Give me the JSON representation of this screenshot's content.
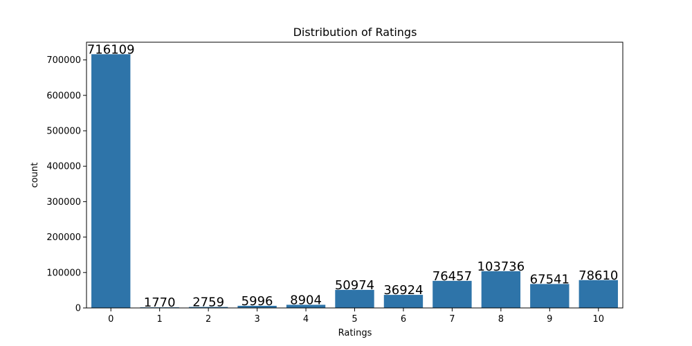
{
  "chart_data": {
    "type": "bar",
    "title": "Distribution of Ratings",
    "xlabel": "Ratings",
    "ylabel": "count",
    "categories": [
      "0",
      "1",
      "2",
      "3",
      "4",
      "5",
      "6",
      "7",
      "8",
      "9",
      "10"
    ],
    "values": [
      716109,
      1770,
      2759,
      5996,
      8904,
      50974,
      36924,
      76457,
      103736,
      67541,
      78610
    ],
    "data_labels": [
      "716109",
      "1770",
      "2759",
      "5996",
      "8904",
      "50974",
      "36924",
      "76457",
      "103736",
      "67541",
      "78610"
    ],
    "ylim": [
      0,
      750000
    ],
    "yticks": [
      0,
      100000,
      200000,
      300000,
      400000,
      500000,
      600000,
      700000
    ],
    "ytick_labels": [
      "0",
      "100000",
      "200000",
      "300000",
      "400000",
      "500000",
      "600000",
      "700000"
    ],
    "bar_color": "#2e74a9",
    "grid": false,
    "legend": "none"
  }
}
